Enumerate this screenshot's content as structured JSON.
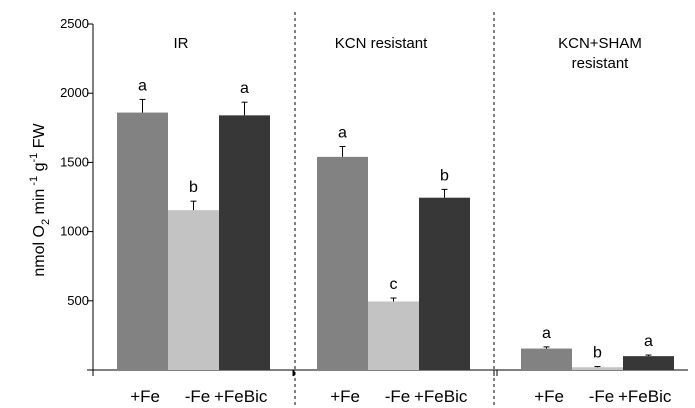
{
  "chart_data": {
    "type": "bar",
    "ylabel": {
      "prefix": "nmol O",
      "sub": "2",
      "mid1": " min",
      "sup1": " -1",
      "mid2": " g",
      "sup2": "-1",
      "suffix": " FW"
    },
    "ylim": [
      0,
      2500
    ],
    "yticks": [
      500,
      1000,
      1500,
      2000,
      2500
    ],
    "yticks_labels": [
      "500",
      "1000",
      "1500",
      "2000",
      "2500"
    ],
    "grid": false,
    "separators": "dashed",
    "colors": {
      "+Fe": "#828282",
      "-Fe": "#c3c3c3",
      "+FeBic": "#373737"
    },
    "groups": [
      {
        "title": [
          "IR"
        ],
        "bars": [
          {
            "category": "+Fe",
            "value": 1860,
            "error": 95,
            "letter": "a"
          },
          {
            "category": "-Fe",
            "value": 1155,
            "error": 65,
            "letter": "b"
          },
          {
            "category": "+FeBic",
            "value": 1840,
            "error": 95,
            "letter": "a"
          }
        ]
      },
      {
        "title": [
          "KCN resistant"
        ],
        "bars": [
          {
            "category": "+Fe",
            "value": 1540,
            "error": 75,
            "letter": "a"
          },
          {
            "category": "-Fe",
            "value": 495,
            "error": 25,
            "letter": "c"
          },
          {
            "category": "+FeBic",
            "value": 1245,
            "error": 60,
            "letter": "b"
          }
        ]
      },
      {
        "title": [
          "KCN+SHAM",
          "resistant"
        ],
        "bars": [
          {
            "category": "+Fe",
            "value": 155,
            "error": 12,
            "letter": "a"
          },
          {
            "category": "-Fe",
            "value": 20,
            "error": 5,
            "letter": "b"
          },
          {
            "category": "+FeBic",
            "value": 100,
            "error": 8,
            "letter": "a"
          }
        ]
      }
    ]
  }
}
